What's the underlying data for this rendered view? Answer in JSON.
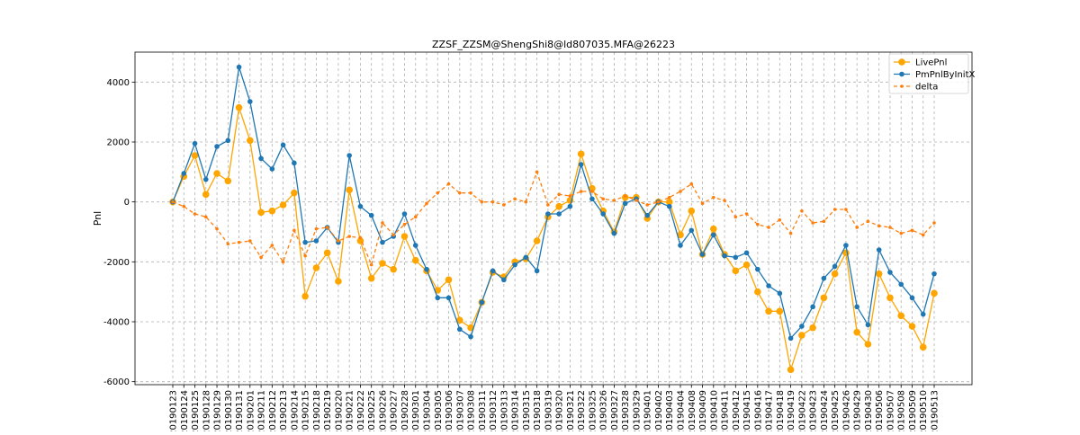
{
  "chart_data": {
    "type": "line",
    "title": "ZZSF_ZZSM@ShengShi8@ld807035.MFA@26223",
    "xlabel": "",
    "ylabel": "Pnl",
    "ylim": [
      -6100,
      5000
    ],
    "yticks": [
      -6000,
      -4000,
      -2000,
      0,
      2000,
      4000
    ],
    "grid": true,
    "legend_position": "top-right",
    "x": [
      "20190123",
      "20190124",
      "20190125",
      "20190128",
      "20190129",
      "20190130",
      "20190131",
      "20190201",
      "20190211",
      "20190212",
      "20190213",
      "20190214",
      "20190215",
      "20190218",
      "20190219",
      "20190220",
      "20190221",
      "20190222",
      "20190225",
      "20190226",
      "20190227",
      "20190228",
      "20190301",
      "20190304",
      "20190305",
      "20190306",
      "20190307",
      "20190308",
      "20190311",
      "20190312",
      "20190313",
      "20190314",
      "20190315",
      "20190318",
      "20190319",
      "20190320",
      "20190321",
      "20190322",
      "20190325",
      "20190326",
      "20190327",
      "20190328",
      "20190329",
      "20190401",
      "20190402",
      "20190403",
      "20190404",
      "20190408",
      "20190409",
      "20190410",
      "20190411",
      "20190412",
      "20190415",
      "20190416",
      "20190417",
      "20190418",
      "20190419",
      "20190422",
      "20190423",
      "20190424",
      "20190425",
      "20190426",
      "20190429",
      "20190430",
      "20190506",
      "20190507",
      "20190508",
      "20190509",
      "20190510",
      "20190513"
    ],
    "series": [
      {
        "name": "LivePnl",
        "color": "#ffa500",
        "style": "solid",
        "marker": "large-circle",
        "values": [
          0,
          850,
          1550,
          250,
          950,
          700,
          3150,
          2050,
          -350,
          -300,
          -100,
          300,
          -3150,
          -2200,
          -1700,
          -2650,
          400,
          -1300,
          -2550,
          -2050,
          -2250,
          -1150,
          -1950,
          -2300,
          -2950,
          -2600,
          -3950,
          -4200,
          -3350,
          -2350,
          -2500,
          -2000,
          -1900,
          -1300,
          -500,
          -150,
          50,
          1600,
          450,
          -300,
          -1000,
          150,
          150,
          -550,
          0,
          0,
          -1100,
          -300,
          -1750,
          -900,
          -1750,
          -2300,
          -2100,
          -3000,
          -3650,
          -3650,
          -5600,
          -4450,
          -4200,
          -3200,
          -2400,
          -1700,
          -4350,
          -4750,
          -2400,
          -3200,
          -3800,
          -4150,
          -4850,
          -3050
        ]
      },
      {
        "name": "PmPnlByInitX",
        "color": "#1f77b4",
        "style": "solid",
        "marker": "circle",
        "values": [
          0,
          950,
          1950,
          750,
          1850,
          2050,
          4500,
          3350,
          1450,
          1100,
          1900,
          1300,
          -1350,
          -1300,
          -850,
          -1350,
          1550,
          -150,
          -450,
          -1350,
          -1150,
          -400,
          -1450,
          -2250,
          -3200,
          -3200,
          -4250,
          -4500,
          -3350,
          -2300,
          -2600,
          -2100,
          -1850,
          -2300,
          -400,
          -400,
          -150,
          1250,
          100,
          -400,
          -1050,
          -50,
          100,
          -450,
          0,
          -150,
          -1450,
          -950,
          -1750,
          -1100,
          -1800,
          -1850,
          -1700,
          -2250,
          -2800,
          -3050,
          -4550,
          -4150,
          -3500,
          -2550,
          -2150,
          -1450,
          -3500,
          -4100,
          -1600,
          -2350,
          -2750,
          -3200,
          -3750,
          -2400
        ]
      },
      {
        "name": "delta",
        "color": "#ff7f0e",
        "style": "dashed",
        "marker": "small-circle",
        "values": [
          0,
          -150,
          -400,
          -500,
          -900,
          -1400,
          -1350,
          -1300,
          -1850,
          -1450,
          -2000,
          -950,
          -1800,
          -900,
          -850,
          -1300,
          -1150,
          -1200,
          -2100,
          -700,
          -1100,
          -750,
          -500,
          -50,
          300,
          600,
          300,
          300,
          0,
          0,
          -100,
          100,
          0,
          1000,
          -100,
          250,
          200,
          350,
          350,
          100,
          50,
          200,
          50,
          -100,
          0,
          150,
          350,
          600,
          -50,
          150,
          50,
          -500,
          -400,
          -750,
          -850,
          -600,
          -1050,
          -300,
          -700,
          -650,
          -250,
          -250,
          -850,
          -650,
          -800,
          -850,
          -1050,
          -950,
          -1100,
          -700
        ]
      }
    ]
  }
}
